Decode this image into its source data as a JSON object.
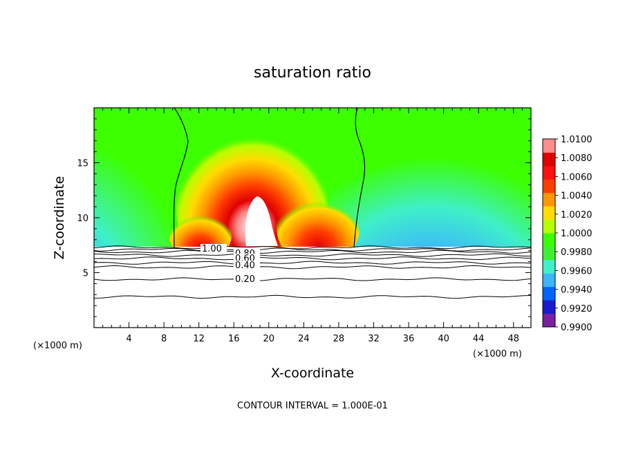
{
  "chart_data": {
    "type": "heatmap",
    "title": "saturation ratio",
    "xlabel": "X-coordinate",
    "ylabel": "Z-coordinate",
    "x_unit": "(×1000 m)",
    "xlim": [
      0,
      50
    ],
    "ylim": [
      0,
      20
    ],
    "x_ticks": [
      4,
      8,
      12,
      16,
      20,
      24,
      28,
      32,
      36,
      40,
      44,
      48
    ],
    "y_ticks": [
      5,
      10,
      15
    ],
    "colorbar": {
      "levels": [
        "0.9900",
        "0.9920",
        "0.9940",
        "0.9960",
        "0.9980",
        "1.0000",
        "1.0020",
        "1.0040",
        "1.0060",
        "1.0080",
        "1.0100"
      ],
      "range": [
        0.99,
        1.01
      ],
      "colors": [
        "#7a1fa0",
        "#1a1ad0",
        "#0064ff",
        "#3cb4ff",
        "#3ff0c8",
        "#3ff030",
        "#3cff00",
        "#b4ff00",
        "#ffdc00",
        "#ff9600",
        "#ff3c00",
        "#ff1010",
        "#e00000",
        "#ff8c8c"
      ]
    },
    "contour_interval_text": "CONTOUR INTERVAL = 1.000E-01",
    "contour_labels": [
      "1.00",
      "0.80",
      "0.60",
      "0.40",
      "0.20"
    ],
    "contour_levels_z": [
      {
        "level": 0.2,
        "z": 4.4
      },
      {
        "level": 0.3,
        "z": 2.8
      },
      {
        "level": 0.4,
        "z": 5.5
      },
      {
        "level": 0.5,
        "z": 5.9
      },
      {
        "level": 0.6,
        "z": 6.3
      },
      {
        "level": 0.7,
        "z": 6.6
      },
      {
        "level": 0.8,
        "z": 6.9
      },
      {
        "level": 0.9,
        "z": 7.1
      },
      {
        "level": 1.0,
        "z": 7.3
      }
    ],
    "cloud_boundary_x": [
      9.6,
      30.0
    ],
    "colored_region_z_bottom": 7.3,
    "grid": false
  }
}
